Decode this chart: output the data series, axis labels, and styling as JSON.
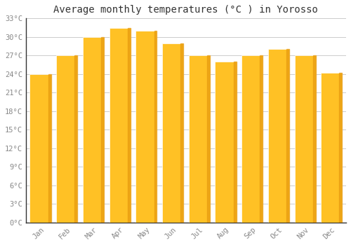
{
  "title": "Average monthly temperatures (°C ) in Yorosso",
  "months": [
    "Jan",
    "Feb",
    "Mar",
    "Apr",
    "May",
    "Jun",
    "Jul",
    "Aug",
    "Sep",
    "Oct",
    "Nov",
    "Dec"
  ],
  "values": [
    24,
    27,
    30,
    31.5,
    31,
    29,
    27,
    26,
    27,
    28,
    27,
    24.2
  ],
  "bar_color_main": "#FFC125",
  "bar_color_right": "#E89B10",
  "background_color": "#FFFFFF",
  "grid_color": "#CCCCCC",
  "ylim": [
    0,
    33
  ],
  "yticks": [
    0,
    3,
    6,
    9,
    12,
    15,
    18,
    21,
    24,
    27,
    30,
    33
  ],
  "ytick_labels": [
    "0°C",
    "3°C",
    "6°C",
    "9°C",
    "12°C",
    "15°C",
    "18°C",
    "21°C",
    "24°C",
    "27°C",
    "30°C",
    "33°C"
  ],
  "title_fontsize": 10,
  "tick_fontsize": 7.5,
  "tick_color": "#888888",
  "font_family": "monospace",
  "bar_width": 0.8,
  "spine_color": "#333333"
}
